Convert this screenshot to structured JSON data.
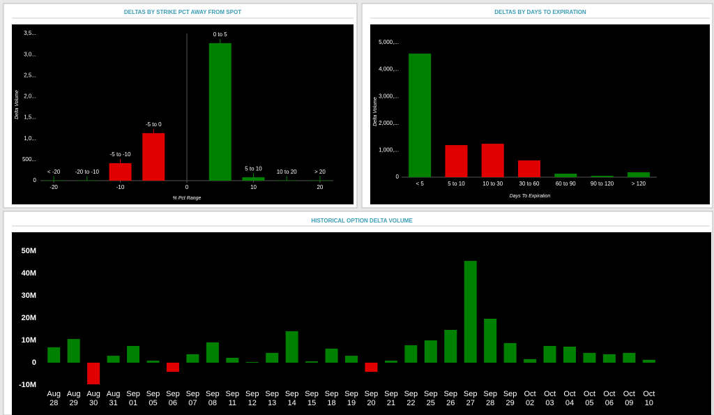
{
  "chart_data": [
    {
      "type": "bar",
      "title": "DELTAS BY STRIKE PCT AWAY FROM SPOT",
      "y_label": "Delta Volume",
      "x_label": "% Pct Range",
      "x": [
        -20,
        -15,
        -10,
        -5,
        5,
        10,
        15,
        20
      ],
      "categories": [
        "< -20",
        "-20 to -10",
        "-5 to -10",
        "-5 to 0",
        "0 to 5",
        "5 to 10",
        "10 to 20",
        "> 20"
      ],
      "values": [
        5,
        5,
        415,
        1130,
        3270,
        80,
        5,
        5
      ],
      "colors": [
        "#008000",
        "#008000",
        "#e00000",
        "#e00000",
        "#008000",
        "#008000",
        "#008000",
        "#008000"
      ],
      "xlim": [
        -22,
        22
      ],
      "xticks": [
        -20,
        -10,
        0,
        10,
        20
      ],
      "ylim": [
        0,
        3500
      ],
      "yticks": [
        0,
        {
          "value": 500,
          "label": "500..."
        },
        {
          "value": 1000,
          "label": "1,0..."
        },
        {
          "value": 1500,
          "label": "1,5..."
        },
        {
          "value": 2000,
          "label": "2,0..."
        },
        {
          "value": 2500,
          "label": "2,5..."
        },
        {
          "value": 3000,
          "label": "3,0..."
        },
        {
          "value": 3500,
          "label": "3,5..."
        }
      ]
    },
    {
      "type": "bar",
      "title": "DELTAS BY DAYS TO EXPIRATION",
      "y_label": "Delta Volume",
      "x_label": "Days To Expiration",
      "categories": [
        "< 5",
        "5 to 10",
        "10 to 30",
        "30 to 60",
        "60 to 90",
        "90 to 120",
        "> 120"
      ],
      "values": [
        4590,
        1190,
        1240,
        620,
        130,
        50,
        180
      ],
      "colors": [
        "#008000",
        "#e00000",
        "#e00000",
        "#e00000",
        "#008000",
        "#008000",
        "#008000"
      ],
      "ylim": [
        0,
        5000
      ],
      "yticks": [
        0,
        {
          "value": 1000,
          "label": "1,000,..."
        },
        {
          "value": 2000,
          "label": "2,000,..."
        },
        {
          "value": 3000,
          "label": "3,000,..."
        },
        {
          "value": 4000,
          "label": "4,000,..."
        },
        {
          "value": 5000,
          "label": "5,000,..."
        }
      ]
    },
    {
      "type": "bar",
      "title": "HISTORICAL OPTION DELTA VOLUME",
      "categories": [
        [
          "Aug",
          "28"
        ],
        [
          "Aug",
          "29"
        ],
        [
          "Aug",
          "30"
        ],
        [
          "Aug",
          "31"
        ],
        [
          "Sep",
          "01"
        ],
        [
          "Sep",
          "05"
        ],
        [
          "Sep",
          "06"
        ],
        [
          "Sep",
          "07"
        ],
        [
          "Sep",
          "08"
        ],
        [
          "Sep",
          "11"
        ],
        [
          "Sep",
          "12"
        ],
        [
          "Sep",
          "13"
        ],
        [
          "Sep",
          "14"
        ],
        [
          "Sep",
          "15"
        ],
        [
          "Sep",
          "18"
        ],
        [
          "Sep",
          "19"
        ],
        [
          "Sep",
          "20"
        ],
        [
          "Sep",
          "21"
        ],
        [
          "Sep",
          "22"
        ],
        [
          "Sep",
          "25"
        ],
        [
          "Sep",
          "26"
        ],
        [
          "Sep",
          "27"
        ],
        [
          "Sep",
          "28"
        ],
        [
          "Sep",
          "29"
        ],
        [
          "Oct",
          "02"
        ],
        [
          "Oct",
          "03"
        ],
        [
          "Oct",
          "04"
        ],
        [
          "Oct",
          "05"
        ],
        [
          "Oct",
          "06"
        ],
        [
          "Oct",
          "09"
        ],
        [
          "Oct",
          "10"
        ]
      ],
      "values": [
        6900000,
        10600000,
        -9700000,
        3100000,
        7500000,
        900000,
        -4100000,
        3800000,
        9100000,
        2200000,
        300000,
        4400000,
        14100000,
        600000,
        6300000,
        3100000,
        -4100000,
        900000,
        7800000,
        10000000,
        14700000,
        45600000,
        19700000,
        8800000,
        1600000,
        7500000,
        7200000,
        4400000,
        3800000,
        4400000,
        1300000
      ],
      "color": "#008000",
      "negative_color": "#e00000",
      "ylim": [
        -10000000,
        50000000
      ],
      "yticks": [
        {
          "value": -10000000,
          "label": "-10M"
        },
        0,
        {
          "value": 10000000,
          "label": "10M"
        },
        {
          "value": 20000000,
          "label": "20M"
        },
        {
          "value": 30000000,
          "label": "30M"
        },
        {
          "value": 40000000,
          "label": "40M"
        },
        {
          "value": 50000000,
          "label": "50M"
        }
      ]
    }
  ]
}
